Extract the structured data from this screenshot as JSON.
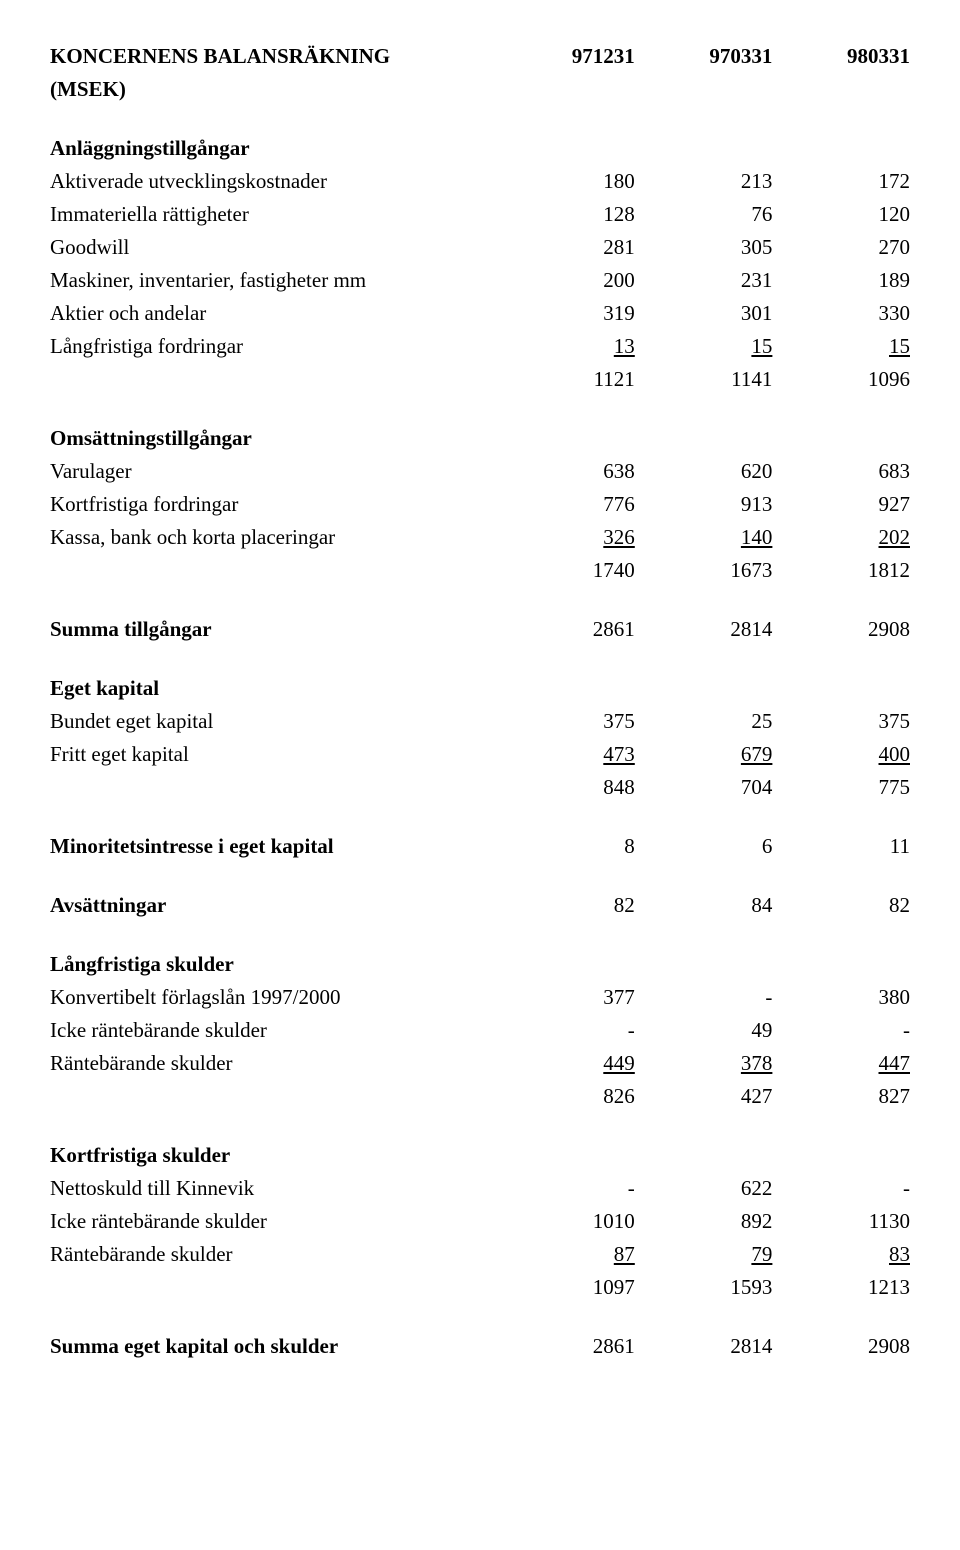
{
  "title": "KONCERNENS BALANSRÄKNING",
  "subtitle": "(MSEK)",
  "dates": [
    "971231",
    "970331",
    "980331"
  ],
  "sections": [
    {
      "heading": "Anläggningstillgångar",
      "rows": [
        {
          "label": "Aktiverade utvecklingskostnader",
          "v": [
            "180",
            "213",
            "172"
          ]
        },
        {
          "label": "Immateriella rättigheter",
          "v": [
            "128",
            "76",
            "120"
          ]
        },
        {
          "label": "Goodwill",
          "v": [
            "281",
            "305",
            "270"
          ]
        },
        {
          "label": "Maskiner, inventarier, fastigheter mm",
          "v": [
            "200",
            "231",
            "189"
          ]
        },
        {
          "label": "Aktier och andelar",
          "v": [
            "319",
            "301",
            "330"
          ]
        },
        {
          "label": "Långfristiga fordringar",
          "v": [
            "13",
            "15",
            "15"
          ],
          "underline": true
        },
        {
          "label": "",
          "v": [
            "1121",
            "1141",
            "1096"
          ]
        }
      ]
    },
    {
      "heading": "Omsättningstillgångar",
      "rows": [
        {
          "label": "Varulager",
          "v": [
            "638",
            "620",
            "683"
          ]
        },
        {
          "label": "Kortfristiga fordringar",
          "v": [
            "776",
            "913",
            "927"
          ]
        },
        {
          "label": "Kassa, bank och korta placeringar",
          "v": [
            "326",
            "140",
            "202"
          ],
          "underline": true
        },
        {
          "label": "",
          "v": [
            "1740",
            "1673",
            "1812"
          ]
        }
      ]
    },
    {
      "boldRow": {
        "label": "Summa tillgångar",
        "v": [
          "2861",
          "2814",
          "2908"
        ]
      }
    },
    {
      "heading": "Eget kapital",
      "rows": [
        {
          "label": "Bundet eget kapital",
          "v": [
            "375",
            "25",
            "375"
          ]
        },
        {
          "label": "Fritt eget kapital",
          "v": [
            "473",
            "679",
            "400"
          ],
          "underline": true
        },
        {
          "label": "",
          "v": [
            "848",
            "704",
            "775"
          ]
        }
      ]
    },
    {
      "boldRow": {
        "label": "Minoritetsintresse i eget kapital",
        "v": [
          "8",
          "6",
          "11"
        ]
      }
    },
    {
      "boldRow": {
        "label": "Avsättningar",
        "v": [
          "82",
          "84",
          "82"
        ]
      }
    },
    {
      "heading": "Långfristiga skulder",
      "rows": [
        {
          "label": "Konvertibelt förlagslån 1997/2000",
          "v": [
            "377",
            "-",
            "380"
          ]
        },
        {
          "label": "Icke räntebärande skulder",
          "v": [
            "-",
            "49",
            "-"
          ]
        },
        {
          "label": "Räntebärande skulder",
          "v": [
            "449",
            "378",
            "447"
          ],
          "underline": true
        },
        {
          "label": "",
          "v": [
            "826",
            "427",
            "827"
          ]
        }
      ]
    },
    {
      "heading": "Kortfristiga skulder",
      "rows": [
        {
          "label": "Nettoskuld till Kinnevik",
          "v": [
            "-",
            "622",
            "-"
          ]
        },
        {
          "label": "Icke räntebärande skulder",
          "v": [
            "1010",
            "892",
            "1130"
          ]
        },
        {
          "label": "Räntebärande skulder",
          "v": [
            "87",
            "79",
            "83"
          ],
          "underline": true
        },
        {
          "label": "",
          "v": [
            "1097",
            "1593",
            "1213"
          ]
        }
      ]
    },
    {
      "boldRow": {
        "label": "Summa eget kapital och skulder",
        "v": [
          "2861",
          "2814",
          "2908"
        ]
      }
    }
  ]
}
